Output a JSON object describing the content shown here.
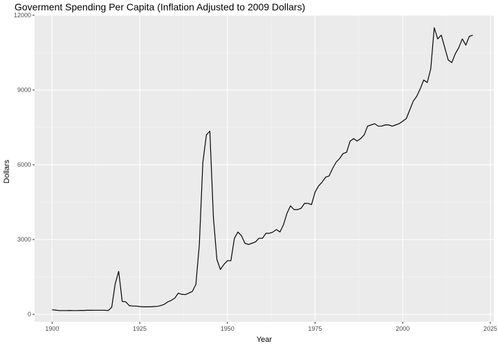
{
  "chart_data": {
    "type": "line",
    "title": "Goverment Spending Per Capita (Inflation Adjusted to 2009 Dollars)",
    "xlabel": "Year",
    "ylabel": "Dollars",
    "xlim": [
      1895,
      2026
    ],
    "ylim": [
      -300,
      12000
    ],
    "xticks": [
      1900,
      1925,
      1950,
      1975,
      2000,
      2025
    ],
    "yticks": [
      0,
      3000,
      6000,
      9000,
      12000
    ],
    "grid": true,
    "legend": "none",
    "colors": {
      "line": "#000000",
      "panel": "#ebebeb",
      "grid_major": "#ffffff",
      "grid_minor": "#f5f5f5",
      "tick_text": "#4d4d4d"
    },
    "series": [
      {
        "x": [
          1900,
          1901,
          1902,
          1903,
          1904,
          1905,
          1906,
          1907,
          1908,
          1909,
          1910,
          1911,
          1912,
          1913,
          1914,
          1915,
          1916,
          1917,
          1918,
          1919,
          1920,
          1921,
          1922,
          1923,
          1924,
          1925,
          1926,
          1927,
          1928,
          1929,
          1930,
          1931,
          1932,
          1933,
          1934,
          1935,
          1936,
          1937,
          1938,
          1939,
          1940,
          1941,
          1942,
          1943,
          1944,
          1945,
          1946,
          1947,
          1948,
          1949,
          1950,
          1951,
          1952,
          1953,
          1954,
          1955,
          1956,
          1957,
          1958,
          1959,
          1960,
          1961,
          1962,
          1963,
          1964,
          1965,
          1966,
          1967,
          1968,
          1969,
          1970,
          1971,
          1972,
          1973,
          1974,
          1975,
          1976,
          1977,
          1978,
          1979,
          1980,
          1981,
          1982,
          1983,
          1984,
          1985,
          1986,
          1987,
          1988,
          1989,
          1990,
          1991,
          1992,
          1993,
          1994,
          1995,
          1996,
          1997,
          1998,
          1999,
          2000,
          2001,
          2002,
          2003,
          2004,
          2005,
          2006,
          2007,
          2008,
          2009,
          2010,
          2011,
          2012,
          2013,
          2014,
          2015,
          2016,
          2017,
          2018,
          2019,
          2020
        ],
        "values": [
          180,
          170,
          150,
          150,
          150,
          155,
          150,
          150,
          155,
          155,
          160,
          160,
          165,
          165,
          165,
          165,
          150,
          280,
          1230,
          1720,
          520,
          500,
          350,
          330,
          330,
          310,
          300,
          300,
          300,
          310,
          320,
          350,
          400,
          500,
          560,
          650,
          850,
          800,
          790,
          850,
          920,
          1200,
          2800,
          6100,
          7200,
          7350,
          3900,
          2200,
          1800,
          2000,
          2150,
          2150,
          3050,
          3300,
          3150,
          2850,
          2800,
          2850,
          2900,
          3050,
          3050,
          3250,
          3250,
          3300,
          3400,
          3300,
          3600,
          4050,
          4350,
          4200,
          4200,
          4250,
          4450,
          4450,
          4400,
          4900,
          5150,
          5300,
          5500,
          5550,
          5850,
          6100,
          6250,
          6450,
          6500,
          6950,
          7050,
          6950,
          7050,
          7200,
          7550,
          7600,
          7650,
          7550,
          7550,
          7600,
          7600,
          7550,
          7600,
          7650,
          7750,
          7850,
          8200,
          8550,
          8750,
          9050,
          9400,
          9300,
          9850,
          11500,
          11050,
          11200,
          10700,
          10200,
          10100,
          10450,
          10700,
          11050,
          10800,
          11150,
          11200
        ]
      }
    ]
  }
}
